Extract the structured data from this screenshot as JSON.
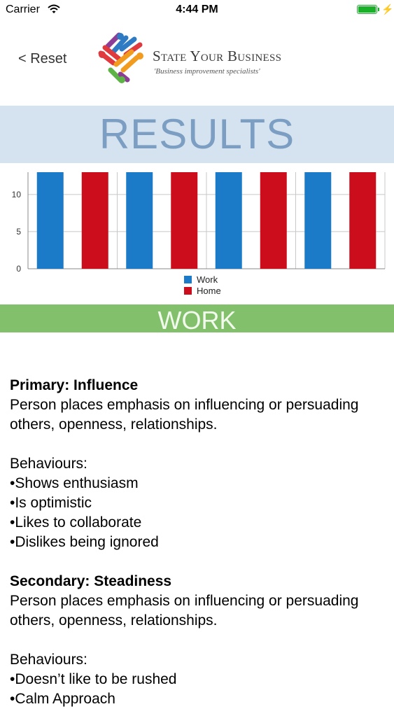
{
  "status_bar": {
    "carrier": "Carrier",
    "time": "4:44 PM",
    "battery_color": "#1ab02a"
  },
  "nav": {
    "back_label": "< Reset"
  },
  "logo": {
    "name": "State Your Business",
    "tagline": "'Business improvement specialists'",
    "colors": [
      "#2e7bc4",
      "#e03a3e",
      "#f29c1f",
      "#5db346",
      "#8c3d96"
    ]
  },
  "results": {
    "title": "RESULTS",
    "background": "#d5e2ef",
    "text_color": "#7b9ec2"
  },
  "chart_data": {
    "type": "bar",
    "categories": [
      "",
      "",
      "",
      ""
    ],
    "series": [
      {
        "name": "Work",
        "values": [
          13,
          13,
          13,
          13
        ],
        "color": "#1c7bc8"
      },
      {
        "name": "Home",
        "values": [
          13,
          13,
          13,
          13
        ],
        "color": "#cc0e1c"
      }
    ],
    "yticks": [
      "0",
      "5",
      "10"
    ],
    "ylim": [
      0,
      13
    ],
    "grid": true,
    "legend_placement": "bottom-center"
  },
  "work_section": {
    "title": "WORK",
    "background": "#82c06b"
  },
  "primary": {
    "heading": "Primary: Influence",
    "description": "Person places emphasis on influencing or persuading others, openness, relationships.",
    "behaviours_label": "Behaviours:",
    "behaviours": [
      "•Shows enthusiasm",
      "•Is optimistic",
      "•Likes to collaborate",
      "•Dislikes being ignored"
    ]
  },
  "secondary": {
    "heading": "Secondary: Steadiness",
    "description": "Person places emphasis on influencing or persuading others, openness, relationships.",
    "behaviours_label": "Behaviours:",
    "behaviours": [
      "•Doesn’t like to be rushed",
      "•Calm Approach"
    ]
  }
}
